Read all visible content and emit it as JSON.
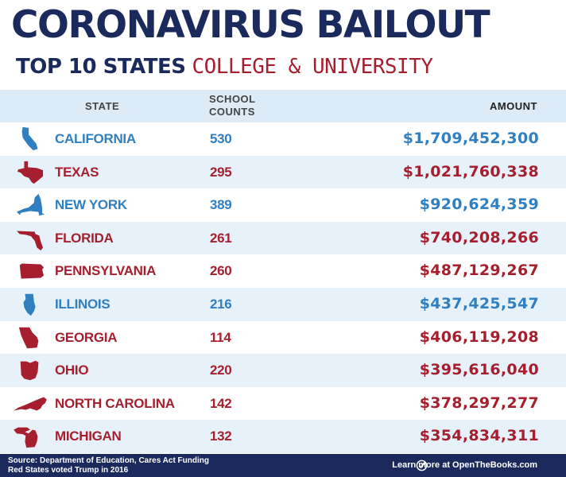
{
  "title": "CORONAVIRUS BAILOUT",
  "subtitle": {
    "part1": "TOP 10 STATES",
    "part2": "COLLEGE & UNIVERSITY"
  },
  "colors": {
    "navy": "#1a2a5c",
    "red": "#a51f2e",
    "blue": "#2f7fc1",
    "header_band": "#dcebf6",
    "alt_row": "#e6f1fa"
  },
  "chart_data": {
    "type": "table",
    "title": "CORONAVIRUS BAILOUT",
    "subtitle": "TOP 10 STATES COLLEGE & UNIVERSITY",
    "columns": [
      "STATE",
      "SCHOOL COUNTS",
      "AMOUNT"
    ],
    "rows": [
      {
        "state": "CALIFORNIA",
        "count": "530",
        "amount": "$1,709,452,300",
        "party": "blue",
        "icon": "california-shape-icon"
      },
      {
        "state": "TEXAS",
        "count": "295",
        "amount": "$1,021,760,338",
        "party": "red",
        "icon": "texas-shape-icon"
      },
      {
        "state": "NEW YORK",
        "count": "389",
        "amount": "$920,624,359",
        "party": "blue",
        "icon": "new-york-shape-icon"
      },
      {
        "state": "FLORIDA",
        "count": "261",
        "amount": "$740,208,266",
        "party": "red",
        "icon": "florida-shape-icon"
      },
      {
        "state": "PENNSYLVANIA",
        "count": "260",
        "amount": "$487,129,267",
        "party": "red",
        "icon": "pennsylvania-shape-icon"
      },
      {
        "state": "ILLINOIS",
        "count": "216",
        "amount": "$437,425,547",
        "party": "blue",
        "icon": "illinois-shape-icon"
      },
      {
        "state": "GEORGIA",
        "count": "114",
        "amount": "$406,119,208",
        "party": "red",
        "icon": "georgia-shape-icon"
      },
      {
        "state": "OHIO",
        "count": "220",
        "amount": "$395,616,040",
        "party": "red",
        "icon": "ohio-shape-icon"
      },
      {
        "state": "NORTH CAROLINA",
        "count": "142",
        "amount": "$378,297,277",
        "party": "red",
        "icon": "north-carolina-shape-icon"
      },
      {
        "state": "MICHIGAN",
        "count": "132",
        "amount": "$354,834,311",
        "party": "red",
        "icon": "michigan-shape-icon"
      }
    ]
  },
  "footer": {
    "source": "Source: Department of Education, Cares Act Funding",
    "note": "Red States voted Trump in 2016",
    "learn_more": "Learn more at OpenTheBooks.com"
  }
}
